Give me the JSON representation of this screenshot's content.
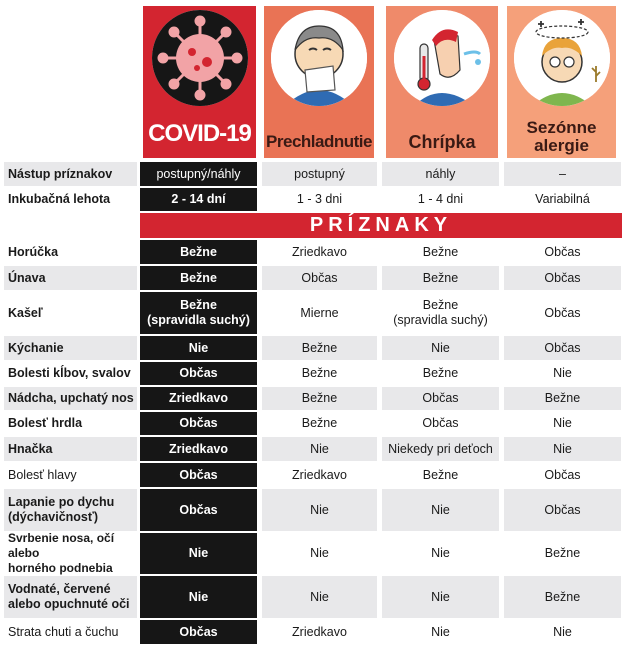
{
  "columns": {
    "covid": "COVID-19",
    "cold": "Prechladnutie",
    "flu": "Chrípka",
    "allergy_line1": "Sezónne",
    "allergy_line2": "alergie"
  },
  "top_rows": [
    {
      "label": "Nástup príznakov",
      "covid": "postupný/náhly",
      "cold": "postupný",
      "flu": "náhly",
      "allergy": "–"
    },
    {
      "label": "Inkubačná lehota",
      "covid": "2 - 14 dní",
      "cold": "1 - 3 dni",
      "flu": "1 - 4 dni",
      "allergy": "Variabilná"
    }
  ],
  "section_title": "PRÍZNAKY",
  "symptoms": [
    {
      "label": "Horúčka",
      "covid": "Bežne",
      "cold": "Zriedkavo",
      "flu": "Bežne",
      "allergy": "Občas"
    },
    {
      "label": "Únava",
      "covid": "Bežne",
      "cold": "Občas",
      "flu": "Bežne",
      "allergy": "Občas"
    },
    {
      "label": "Kašeľ",
      "covid": "Bežne\n(spravidla suchý)",
      "cold": "Mierne",
      "flu": "Bežne\n(spravidla suchý)",
      "allergy": "Občas"
    },
    {
      "label": "Kýchanie",
      "covid": "Nie",
      "cold": "Bežne",
      "flu": "Nie",
      "allergy": "Občas"
    },
    {
      "label": "Bolesti kĺbov, svalov",
      "covid": "Občas",
      "cold": "Bežne",
      "flu": "Bežne",
      "allergy": "Nie"
    },
    {
      "label": "Nádcha, upchatý nos",
      "covid": "Zriedkavo",
      "cold": "Bežne",
      "flu": "Občas",
      "allergy": "Bežne"
    },
    {
      "label": "Bolesť hrdla",
      "covid": "Občas",
      "cold": "Bežne",
      "flu": "Občas",
      "allergy": "Nie"
    },
    {
      "label": "Hnačka",
      "covid": "Zriedkavo",
      "cold": "Nie",
      "flu": "Niekedy pri deťoch",
      "allergy": "Nie"
    },
    {
      "label": "Bolesť hlavy",
      "covid": "Občas",
      "cold": "Zriedkavo",
      "flu": "Bežne",
      "allergy": "Občas"
    },
    {
      "label": "Lapanie po dychu\n(dýchavičnosť)",
      "covid": "Občas",
      "cold": "Nie",
      "flu": "Nie",
      "allergy": "Občas"
    },
    {
      "label": "Svrbenie nosa, očí alebo\nhorného podnebia",
      "covid": "Nie",
      "cold": "Nie",
      "flu": "Nie",
      "allergy": "Bežne"
    },
    {
      "label": "Vodnaté, červené\nalebo opuchnuté oči",
      "covid": "Nie",
      "cold": "Nie",
      "flu": "Nie",
      "allergy": "Bežne"
    },
    {
      "label": "Strata chuti a čuchu",
      "covid": "Občas",
      "cold": "Zriedkavo",
      "flu": "Nie",
      "allergy": "Nie"
    }
  ],
  "icons": {
    "covid": "virus-icon",
    "cold": "sneezing-person-icon",
    "flu": "fever-person-icon",
    "allergy": "allergy-person-icon"
  },
  "colors": {
    "covid": "#d32530",
    "cold": "#e97355",
    "flu": "#ef8a6a",
    "allergy": "#f5a07a",
    "shade": "#e8e8ea"
  }
}
